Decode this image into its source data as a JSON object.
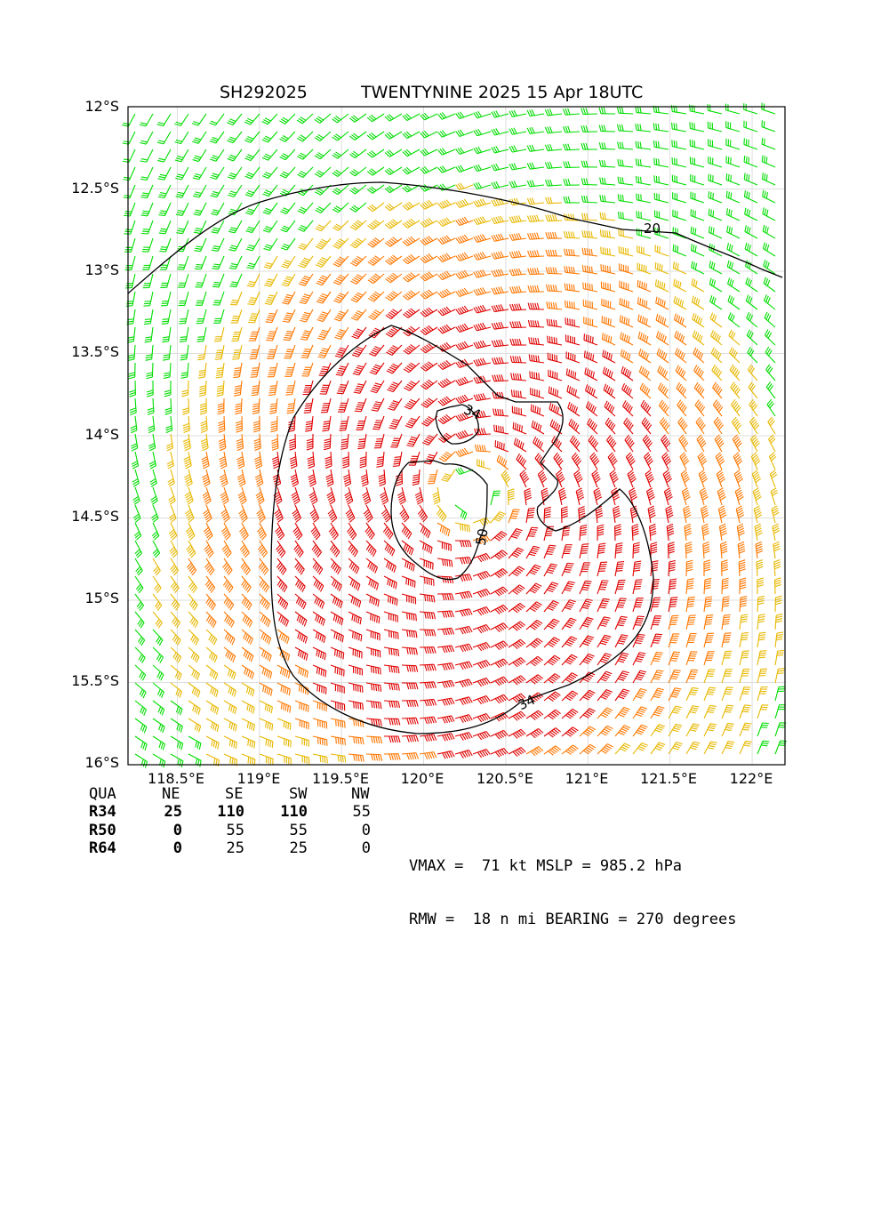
{
  "header": {
    "storm_id": "SH292025",
    "storm_name_time": "TWENTYNINE 2025 15 Apr 18UTC"
  },
  "axes": {
    "lat_ticks": [
      "12°S",
      "12.5°S",
      "13°S",
      "13.5°S",
      "14°S",
      "14.5°S",
      "15°S",
      "15.5°S",
      "16°S"
    ],
    "lon_ticks": [
      "118.5°E",
      "119°E",
      "119.5°E",
      "120°E",
      "120.5°E",
      "121°E",
      "121.5°E",
      "122°E"
    ]
  },
  "contour_labels": {
    "c20": "20",
    "c34_inner": "34",
    "c50": "50",
    "c34_outer": "34"
  },
  "wind_radii_table": {
    "headers": [
      "QUA",
      "NE",
      "SE",
      "SW",
      "NW"
    ],
    "rows": [
      {
        "label": "R34",
        "values": [
          "25",
          "110",
          "110",
          "55"
        ]
      },
      {
        "label": "R50",
        "values": [
          "0",
          "55",
          "55",
          "0"
        ]
      },
      {
        "label": "R64",
        "values": [
          "0",
          "25",
          "25",
          "0"
        ]
      }
    ]
  },
  "summary": {
    "line1": "VMAX =  71 kt MSLP = 985.2 hPa",
    "line2": "RMW =  18 n mi BEARING = 270 degrees"
  },
  "map_data": {
    "lon_range": [
      118.2,
      122.2
    ],
    "lat_range": [
      -16.0,
      -12.0
    ],
    "center": {
      "lon": 120.3,
      "lat": -14.35
    },
    "vmax_kt": 71,
    "rmw_nmi": 18,
    "wind_speed_colors": {
      "below_20": "#000000",
      "20_to_34": "#00dd00",
      "34_to_50": "#e8b800",
      "50_to_64": "#ff7700",
      "above_64": "#e00000"
    },
    "contour_levels_kt": [
      20,
      34,
      50
    ]
  }
}
